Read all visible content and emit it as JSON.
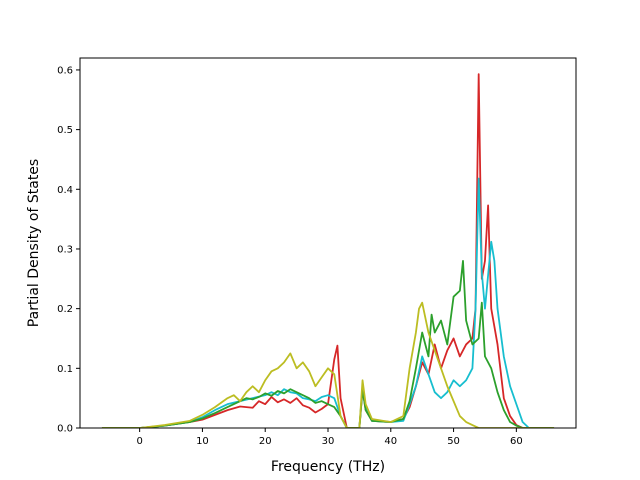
{
  "chart_data": {
    "type": "line",
    "xlabel": "Frequency (THz)",
    "ylabel": "Partial Density of States",
    "xlim": [
      -9.5,
      69.5
    ],
    "ylim": [
      0.0,
      0.62
    ],
    "xticks": [
      0,
      10,
      20,
      30,
      40,
      50,
      60
    ],
    "yticks": [
      0.0,
      0.1,
      0.2,
      0.3,
      0.4,
      0.5,
      0.6
    ],
    "xtick_labels": [
      "0",
      "10",
      "20",
      "30",
      "40",
      "50",
      "60"
    ],
    "ytick_labels": [
      "0.0",
      "0.1",
      "0.2",
      "0.3",
      "0.4",
      "0.5",
      "0.6"
    ],
    "grid": false,
    "series": [
      {
        "color": "#d62728",
        "points": [
          [
            -6,
            0
          ],
          [
            0,
            0
          ],
          [
            4,
            0.004
          ],
          [
            8,
            0.01
          ],
          [
            10,
            0.014
          ],
          [
            12,
            0.022
          ],
          [
            14,
            0.03
          ],
          [
            16,
            0.036
          ],
          [
            18,
            0.034
          ],
          [
            19,
            0.045
          ],
          [
            20,
            0.04
          ],
          [
            21,
            0.052
          ],
          [
            22,
            0.043
          ],
          [
            23,
            0.048
          ],
          [
            24,
            0.042
          ],
          [
            25,
            0.05
          ],
          [
            26,
            0.038
          ],
          [
            27,
            0.034
          ],
          [
            28,
            0.026
          ],
          [
            29,
            0.032
          ],
          [
            30,
            0.04
          ],
          [
            31,
            0.115
          ],
          [
            31.5,
            0.138
          ],
          [
            32,
            0.05
          ],
          [
            33,
            0
          ],
          [
            35,
            0
          ],
          [
            35.5,
            0.065
          ],
          [
            36,
            0.03
          ],
          [
            37,
            0.012
          ],
          [
            40,
            0.01
          ],
          [
            42,
            0.015
          ],
          [
            43,
            0.035
          ],
          [
            44,
            0.07
          ],
          [
            45,
            0.11
          ],
          [
            46,
            0.09
          ],
          [
            47,
            0.14
          ],
          [
            48,
            0.1
          ],
          [
            49,
            0.13
          ],
          [
            50,
            0.15
          ],
          [
            51,
            0.12
          ],
          [
            52,
            0.14
          ],
          [
            53,
            0.15
          ],
          [
            53.5,
            0.2
          ],
          [
            54,
            0.593
          ],
          [
            54.5,
            0.25
          ],
          [
            55,
            0.28
          ],
          [
            55.5,
            0.373
          ],
          [
            56,
            0.2
          ],
          [
            57,
            0.14
          ],
          [
            58,
            0.05
          ],
          [
            59,
            0.02
          ],
          [
            60,
            0.005
          ],
          [
            61,
            0
          ],
          [
            66,
            0
          ]
        ]
      },
      {
        "color": "#17becf",
        "points": [
          [
            -6,
            0
          ],
          [
            0,
            0
          ],
          [
            4,
            0.004
          ],
          [
            8,
            0.01
          ],
          [
            10,
            0.018
          ],
          [
            12,
            0.03
          ],
          [
            14,
            0.04
          ],
          [
            16,
            0.045
          ],
          [
            18,
            0.05
          ],
          [
            20,
            0.055
          ],
          [
            21,
            0.06
          ],
          [
            22,
            0.055
          ],
          [
            23,
            0.065
          ],
          [
            24,
            0.06
          ],
          [
            25,
            0.058
          ],
          [
            26,
            0.05
          ],
          [
            27,
            0.048
          ],
          [
            28,
            0.045
          ],
          [
            29,
            0.052
          ],
          [
            30,
            0.055
          ],
          [
            31,
            0.05
          ],
          [
            32,
            0.02
          ],
          [
            33,
            0
          ],
          [
            35,
            0
          ],
          [
            35.5,
            0.07
          ],
          [
            36,
            0.035
          ],
          [
            37,
            0.012
          ],
          [
            40,
            0.01
          ],
          [
            42,
            0.012
          ],
          [
            43,
            0.04
          ],
          [
            44,
            0.07
          ],
          [
            45,
            0.12
          ],
          [
            46,
            0.09
          ],
          [
            47,
            0.06
          ],
          [
            48,
            0.05
          ],
          [
            49,
            0.06
          ],
          [
            50,
            0.08
          ],
          [
            51,
            0.07
          ],
          [
            52,
            0.08
          ],
          [
            53,
            0.1
          ],
          [
            53.5,
            0.2
          ],
          [
            54,
            0.418
          ],
          [
            54.5,
            0.26
          ],
          [
            55,
            0.2
          ],
          [
            56,
            0.312
          ],
          [
            56.5,
            0.28
          ],
          [
            57,
            0.2
          ],
          [
            58,
            0.12
          ],
          [
            59,
            0.07
          ],
          [
            60,
            0.04
          ],
          [
            61,
            0.01
          ],
          [
            62,
            0
          ],
          [
            66,
            0
          ]
        ]
      },
      {
        "color": "#2ca02c",
        "points": [
          [
            -6,
            0
          ],
          [
            0,
            0
          ],
          [
            4,
            0.004
          ],
          [
            8,
            0.01
          ],
          [
            10,
            0.016
          ],
          [
            12,
            0.025
          ],
          [
            14,
            0.035
          ],
          [
            16,
            0.045
          ],
          [
            17,
            0.05
          ],
          [
            18,
            0.048
          ],
          [
            19,
            0.052
          ],
          [
            20,
            0.058
          ],
          [
            21,
            0.054
          ],
          [
            22,
            0.062
          ],
          [
            23,
            0.058
          ],
          [
            24,
            0.065
          ],
          [
            25,
            0.06
          ],
          [
            26,
            0.055
          ],
          [
            27,
            0.05
          ],
          [
            28,
            0.042
          ],
          [
            29,
            0.045
          ],
          [
            30,
            0.04
          ],
          [
            31,
            0.035
          ],
          [
            32,
            0.02
          ],
          [
            33,
            0
          ],
          [
            35,
            0
          ],
          [
            35.5,
            0.065
          ],
          [
            36,
            0.03
          ],
          [
            37,
            0.012
          ],
          [
            40,
            0.01
          ],
          [
            42,
            0.015
          ],
          [
            43,
            0.045
          ],
          [
            44,
            0.1
          ],
          [
            45,
            0.16
          ],
          [
            46,
            0.12
          ],
          [
            46.5,
            0.19
          ],
          [
            47,
            0.16
          ],
          [
            48,
            0.18
          ],
          [
            49,
            0.14
          ],
          [
            50,
            0.22
          ],
          [
            51,
            0.23
          ],
          [
            51.5,
            0.28
          ],
          [
            52,
            0.18
          ],
          [
            53,
            0.14
          ],
          [
            54,
            0.15
          ],
          [
            54.5,
            0.21
          ],
          [
            55,
            0.12
          ],
          [
            56,
            0.1
          ],
          [
            57,
            0.06
          ],
          [
            58,
            0.03
          ],
          [
            59,
            0.01
          ],
          [
            60,
            0.004
          ],
          [
            61,
            0
          ],
          [
            66,
            0
          ]
        ]
      },
      {
        "color": "#bcbd22",
        "points": [
          [
            -6,
            0
          ],
          [
            0,
            0
          ],
          [
            4,
            0.005
          ],
          [
            8,
            0.012
          ],
          [
            10,
            0.022
          ],
          [
            12,
            0.035
          ],
          [
            14,
            0.05
          ],
          [
            15,
            0.055
          ],
          [
            16,
            0.045
          ],
          [
            17,
            0.06
          ],
          [
            18,
            0.07
          ],
          [
            19,
            0.06
          ],
          [
            20,
            0.08
          ],
          [
            21,
            0.095
          ],
          [
            22,
            0.1
          ],
          [
            23,
            0.11
          ],
          [
            24,
            0.125
          ],
          [
            25,
            0.1
          ],
          [
            26,
            0.11
          ],
          [
            27,
            0.095
          ],
          [
            28,
            0.07
          ],
          [
            29,
            0.085
          ],
          [
            30,
            0.1
          ],
          [
            31,
            0.09
          ],
          [
            32,
            0.02
          ],
          [
            33,
            0
          ],
          [
            35,
            0
          ],
          [
            35.5,
            0.08
          ],
          [
            36,
            0.04
          ],
          [
            37,
            0.015
          ],
          [
            40,
            0.01
          ],
          [
            42,
            0.02
          ],
          [
            43,
            0.1
          ],
          [
            44,
            0.16
          ],
          [
            44.5,
            0.2
          ],
          [
            45,
            0.21
          ],
          [
            46,
            0.16
          ],
          [
            47,
            0.13
          ],
          [
            48,
            0.1
          ],
          [
            49,
            0.07
          ],
          [
            50,
            0.045
          ],
          [
            51,
            0.02
          ],
          [
            52,
            0.01
          ],
          [
            53,
            0.005
          ],
          [
            54,
            0
          ],
          [
            66,
            0
          ]
        ]
      }
    ]
  }
}
